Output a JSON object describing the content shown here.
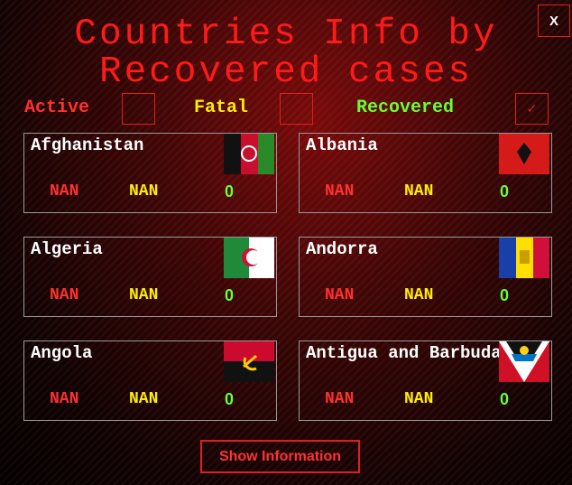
{
  "header": {
    "title_line1": "Countries Info by",
    "title_line2": "Recovered cases",
    "close": "X"
  },
  "filters": [
    {
      "label": "Active",
      "checked": false
    },
    {
      "label": "Fatal",
      "checked": false
    },
    {
      "label": "Recovered",
      "checked": true,
      "mark": "✓"
    }
  ],
  "countries": [
    {
      "name": "Afghanistan",
      "active": "NAN",
      "fatal": "NAN",
      "recovered": 0
    },
    {
      "name": "Albania",
      "active": "NAN",
      "fatal": "NAN",
      "recovered": 0
    },
    {
      "name": "Algeria",
      "active": "NAN",
      "fatal": "NAN",
      "recovered": 0
    },
    {
      "name": "Andorra",
      "active": "NAN",
      "fatal": "NAN",
      "recovered": 0
    },
    {
      "name": "Angola",
      "active": "NAN",
      "fatal": "NAN",
      "recovered": 0
    },
    {
      "name": "Antigua and Barbuda",
      "active": "NAN",
      "fatal": "NAN",
      "recovered": 0
    }
  ],
  "button": "Show Information"
}
